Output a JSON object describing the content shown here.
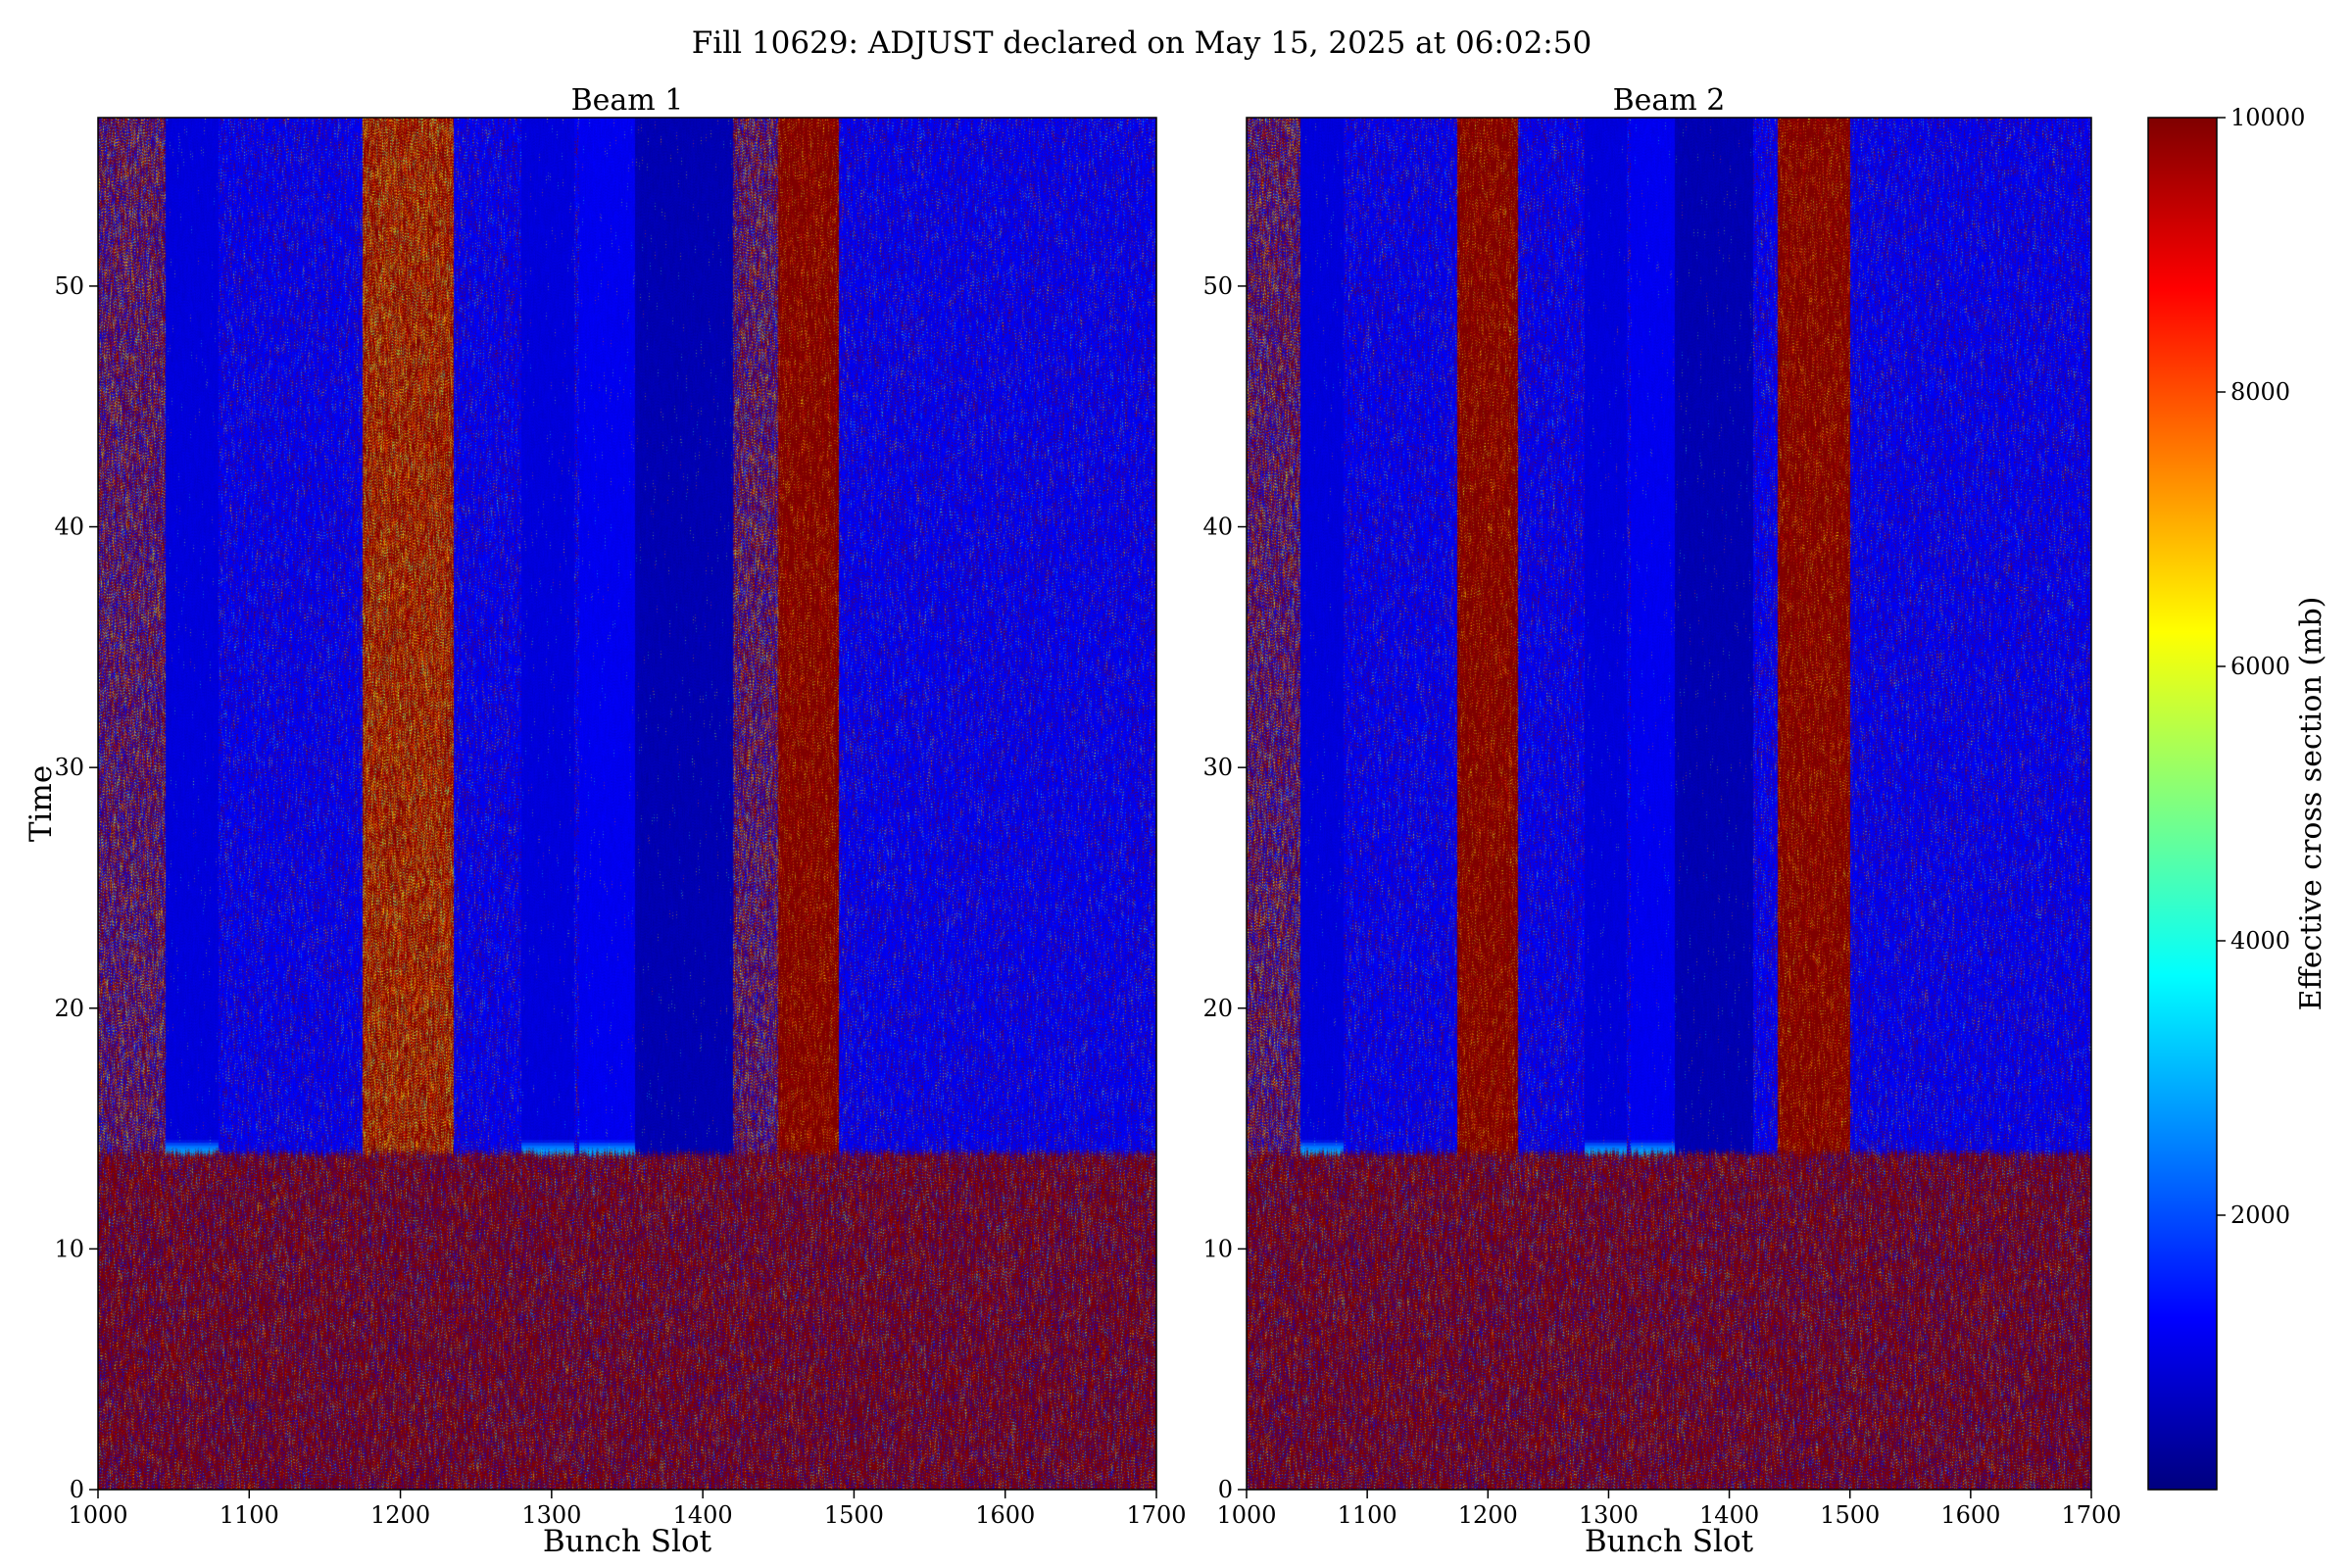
{
  "figure": {
    "title": "Fill 10629: ADJUST declared on May 15, 2025 at 06:02:50"
  },
  "colorbar": {
    "label": "Effective cross section (mb)",
    "colormap": "jet",
    "range": [
      0,
      10000
    ],
    "ticks": [
      2000,
      4000,
      6000,
      8000,
      10000
    ]
  },
  "chart_data": [
    {
      "type": "heatmap",
      "title": "Beam 1",
      "xlabel": "Bunch Slot",
      "ylabel": "Time",
      "xlim": [
        1000,
        1700
      ],
      "ylim": [
        0,
        57
      ],
      "xticks": [
        1000,
        1100,
        1200,
        1300,
        1400,
        1500,
        1600,
        1700
      ],
      "yticks": [
        0,
        10,
        20,
        30,
        40,
        50
      ],
      "value_unit": "mb",
      "transition_time": 14,
      "before_transition": "noisy, mostly saturated at 10000",
      "regions_after_transition": [
        {
          "slots": [
            1000,
            1045
          ],
          "level": "mixed noise"
        },
        {
          "slots": [
            1045,
            1080
          ],
          "level": 900,
          "band_onset_time": 12.5
        },
        {
          "slots": [
            1080,
            1175
          ],
          "level": "sparse noise"
        },
        {
          "slots": [
            1175,
            1235
          ],
          "level": "saturated, yellow/cyan speckle"
        },
        {
          "slots": [
            1235,
            1280
          ],
          "level": "sparse noise"
        },
        {
          "slots": [
            1280,
            1315
          ],
          "level": 900,
          "band_onset_time": 12.5
        },
        {
          "slots": [
            1318,
            1355
          ],
          "level": 1100,
          "band_onset_time": 12.5
        },
        {
          "slots": [
            1355,
            1420
          ],
          "level": 500
        },
        {
          "slots": [
            1420,
            1450
          ],
          "level": "mixed noise"
        },
        {
          "slots": [
            1450,
            1490
          ],
          "level": "saturated"
        },
        {
          "slots": [
            1490,
            1700
          ],
          "level": "sparse noise"
        }
      ]
    },
    {
      "type": "heatmap",
      "title": "Beam 2",
      "xlabel": "Bunch Slot",
      "ylabel": "",
      "xlim": [
        1000,
        1700
      ],
      "ylim": [
        0,
        57
      ],
      "xticks": [
        1000,
        1100,
        1200,
        1300,
        1400,
        1500,
        1600,
        1700
      ],
      "yticks": [
        0,
        10,
        20,
        30,
        40,
        50
      ],
      "value_unit": "mb",
      "transition_time": 14,
      "before_transition": "noisy, mostly saturated at 10000",
      "regions_after_transition": [
        {
          "slots": [
            1000,
            1045
          ],
          "level": "mixed noise"
        },
        {
          "slots": [
            1045,
            1080
          ],
          "level": 900,
          "band_onset_time": 12.5
        },
        {
          "slots": [
            1080,
            1175
          ],
          "level": "sparse noise"
        },
        {
          "slots": [
            1175,
            1225
          ],
          "level": "saturated"
        },
        {
          "slots": [
            1225,
            1280
          ],
          "level": "sparse noise"
        },
        {
          "slots": [
            1280,
            1315
          ],
          "level": 900,
          "band_onset_time": 12.5
        },
        {
          "slots": [
            1318,
            1355
          ],
          "level": 1100,
          "band_onset_time": 12.5
        },
        {
          "slots": [
            1355,
            1420
          ],
          "level": 500
        },
        {
          "slots": [
            1420,
            1440
          ],
          "level": "sparse noise"
        },
        {
          "slots": [
            1440,
            1500
          ],
          "level": "saturated"
        },
        {
          "slots": [
            1500,
            1700
          ],
          "level": "sparse noise"
        }
      ]
    }
  ]
}
